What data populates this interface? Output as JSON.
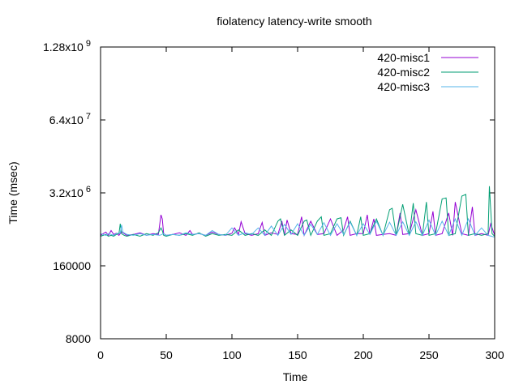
{
  "chart_data": {
    "type": "line",
    "title": "fiolatency latency-write smooth",
    "xlabel": "Time",
    "ylabel": "Time (msec)",
    "xlim": [
      0,
      300
    ],
    "ylim": [
      8000,
      1280000000
    ],
    "yscale": "log",
    "grid": false,
    "legend_position": "top-right",
    "x_ticks": [
      {
        "v": 0,
        "label": "0"
      },
      {
        "v": 50,
        "label": "50"
      },
      {
        "v": 100,
        "label": "100"
      },
      {
        "v": 150,
        "label": "150"
      },
      {
        "v": 200,
        "label": "200"
      },
      {
        "v": 250,
        "label": "250"
      },
      {
        "v": 300,
        "label": "300"
      }
    ],
    "y_ticks": [
      {
        "v": 8000,
        "base": "8000",
        "exp": ""
      },
      {
        "v": 160000,
        "base": "160000",
        "exp": ""
      },
      {
        "v": 3200000,
        "base": "3.2x10",
        "exp": "6"
      },
      {
        "v": 64000000,
        "base": "6.4x10",
        "exp": "7"
      },
      {
        "v": 1280000000,
        "base": "1.28x10",
        "exp": "9"
      }
    ],
    "series": [
      {
        "name": "420-misc1",
        "color": "#9400d3",
        "x": [
          0,
          2,
          4,
          6,
          8,
          10,
          12,
          14,
          16,
          18,
          20,
          25,
          30,
          35,
          40,
          44,
          46,
          47,
          48,
          50,
          55,
          60,
          65,
          68,
          70,
          75,
          80,
          85,
          90,
          95,
          100,
          102,
          105,
          107,
          110,
          115,
          120,
          123,
          125,
          130,
          135,
          138,
          140,
          142,
          145,
          150,
          153,
          155,
          160,
          165,
          170,
          175,
          180,
          185,
          188,
          190,
          195,
          200,
          203,
          205,
          208,
          210,
          215,
          220,
          225,
          228,
          230,
          235,
          240,
          245,
          250,
          253,
          255,
          260,
          265,
          268,
          270,
          275,
          280,
          283,
          285,
          290,
          295,
          297,
          300
        ],
        "y": [
          560000,
          600000,
          640000,
          560000,
          680000,
          580000,
          610000,
          560000,
          650000,
          600000,
          560000,
          580000,
          620000,
          560000,
          600000,
          580000,
          1300000,
          1100000,
          600000,
          560000,
          580000,
          620000,
          560000,
          680000,
          580000,
          600000,
          560000,
          640000,
          580000,
          560000,
          610000,
          760000,
          580000,
          980000,
          600000,
          560000,
          600000,
          950000,
          560000,
          620000,
          580000,
          1000000,
          560000,
          1050000,
          600000,
          580000,
          1200000,
          560000,
          1000000,
          580000,
          600000,
          1100000,
          560000,
          700000,
          1200000,
          560000,
          600000,
          600000,
          1300000,
          580000,
          1100000,
          560000,
          580000,
          600000,
          560000,
          1400000,
          580000,
          600000,
          1600000,
          560000,
          600000,
          1500000,
          560000,
          600000,
          1400000,
          560000,
          2200000,
          600000,
          560000,
          1800000,
          560000,
          600000,
          560000,
          900000,
          560000
        ]
      },
      {
        "name": "420-misc2",
        "color": "#009e73",
        "x": [
          0,
          2,
          4,
          6,
          8,
          10,
          12,
          14,
          15,
          16,
          18,
          20,
          25,
          30,
          35,
          40,
          44,
          46,
          47,
          48,
          50,
          55,
          60,
          65,
          70,
          75,
          80,
          85,
          90,
          95,
          100,
          105,
          110,
          115,
          120,
          125,
          130,
          135,
          137,
          140,
          145,
          150,
          155,
          157,
          160,
          165,
          168,
          170,
          175,
          180,
          183,
          185,
          190,
          195,
          198,
          200,
          205,
          210,
          215,
          220,
          222,
          225,
          230,
          235,
          238,
          240,
          245,
          248,
          250,
          255,
          260,
          263,
          265,
          270,
          275,
          278,
          280,
          285,
          290,
          295,
          296,
          298,
          300
        ],
        "y": [
          540000,
          560000,
          580000,
          540000,
          560000,
          540000,
          580000,
          600000,
          900000,
          600000,
          560000,
          540000,
          580000,
          540000,
          600000,
          560000,
          620000,
          760000,
          680000,
          560000,
          540000,
          580000,
          560000,
          600000,
          560000,
          620000,
          540000,
          600000,
          560000,
          580000,
          560000,
          700000,
          560000,
          600000,
          560000,
          700000,
          560000,
          1000000,
          1100000,
          560000,
          700000,
          560000,
          1000000,
          1050000,
          560000,
          1000000,
          1200000,
          560000,
          600000,
          1100000,
          1150000,
          560000,
          1000000,
          560000,
          1200000,
          560000,
          600000,
          1100000,
          560000,
          1600000,
          1700000,
          560000,
          2000000,
          560000,
          2100000,
          600000,
          560000,
          2200000,
          560000,
          600000,
          2500000,
          2600000,
          560000,
          600000,
          2800000,
          3000000,
          560000,
          600000,
          560000,
          600000,
          4200000,
          600000,
          540000
        ]
      },
      {
        "name": "420-misc3",
        "color": "#56b4e9",
        "x": [
          0,
          2,
          4,
          6,
          8,
          10,
          12,
          15,
          16,
          17,
          20,
          25,
          30,
          35,
          40,
          45,
          48,
          50,
          55,
          60,
          65,
          70,
          75,
          80,
          85,
          90,
          95,
          100,
          105,
          110,
          115,
          120,
          125,
          130,
          135,
          140,
          145,
          150,
          155,
          160,
          165,
          170,
          175,
          180,
          185,
          190,
          195,
          200,
          205,
          210,
          215,
          220,
          225,
          230,
          235,
          240,
          245,
          250,
          255,
          260,
          265,
          270,
          275,
          280,
          285,
          290,
          295,
          300
        ],
        "y": [
          600000,
          580000,
          560000,
          600000,
          580000,
          560000,
          600000,
          620000,
          860000,
          640000,
          580000,
          560000,
          600000,
          560000,
          580000,
          560000,
          600000,
          560000,
          580000,
          560000,
          620000,
          580000,
          600000,
          560000,
          680000,
          580000,
          560000,
          760000,
          560000,
          620000,
          580000,
          760000,
          560000,
          820000,
          560000,
          880000,
          580000,
          900000,
          560000,
          880000,
          580000,
          940000,
          560000,
          900000,
          580000,
          960000,
          560000,
          900000,
          580000,
          1000000,
          560000,
          960000,
          560000,
          980000,
          560000,
          980000,
          560000,
          1050000,
          560000,
          1000000,
          560000,
          1100000,
          560000,
          1100000,
          560000,
          760000,
          560000,
          520000
        ]
      }
    ]
  }
}
